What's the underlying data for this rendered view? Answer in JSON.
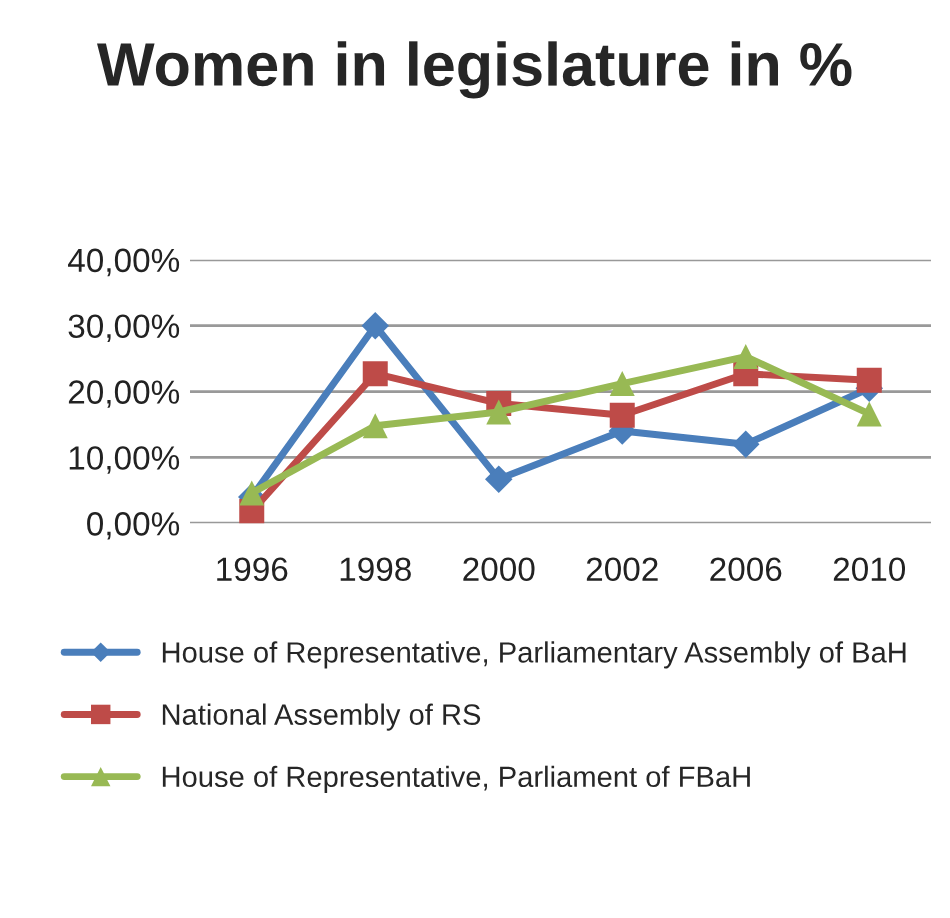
{
  "chart_data": {
    "type": "line",
    "title": "Women in legislature in %",
    "categories": [
      "1996",
      "1998",
      "2000",
      "2002",
      "2006",
      "2010"
    ],
    "series": [
      {
        "name": "House of Representative, Parliamentary Assembly of BaH",
        "color": "#4a7ebb",
        "marker": "diamond",
        "values": [
          4,
          30,
          6.7,
          14,
          12,
          20.5
        ]
      },
      {
        "name": "National Assembly of RS",
        "color": "#be4b48",
        "marker": "square",
        "values": [
          1.8,
          22.7,
          18.2,
          16.4,
          22.7,
          21.7
        ]
      },
      {
        "name": "House of Representative, Parliament of FBaH",
        "color": "#98b954",
        "marker": "triangle",
        "values": [
          4.6,
          14.8,
          16.9,
          21.2,
          25.3,
          16.6
        ]
      }
    ],
    "ylim": [
      0,
      40
    ],
    "yticks": [
      {
        "value": 0,
        "label": "0,00%"
      },
      {
        "value": 10,
        "label": "10,00%"
      },
      {
        "value": 20,
        "label": "20,00%"
      },
      {
        "value": 30,
        "label": "30,00%"
      },
      {
        "value": 40,
        "label": "40,00%"
      }
    ],
    "grid": "y",
    "legend": "bottom",
    "line_style": "solid"
  }
}
